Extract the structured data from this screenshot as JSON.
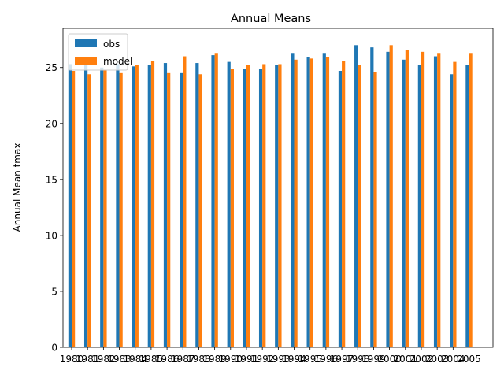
{
  "chart_data": {
    "type": "bar",
    "title": "Annual Means",
    "xlabel": "",
    "ylabel": "Annual Mean tmax",
    "ylim": [
      0,
      28.5
    ],
    "yticks": [
      0,
      5,
      10,
      15,
      20,
      25
    ],
    "legend_position": "top-left",
    "categories": [
      "1980",
      "1981",
      "1982",
      "1983",
      "1984",
      "1985",
      "1986",
      "1987",
      "1988",
      "1989",
      "1990",
      "1991",
      "1992",
      "1993",
      "1994",
      "1995",
      "1996",
      "1997",
      "1998",
      "1999",
      "2000",
      "2001",
      "2002",
      "2003",
      "2004",
      "2005"
    ],
    "series": [
      {
        "name": "obs",
        "color": "#1f77b4",
        "values": [
          25.3,
          25.4,
          25.0,
          25.3,
          25.1,
          25.2,
          25.4,
          24.5,
          25.4,
          26.1,
          25.5,
          24.9,
          24.9,
          25.2,
          26.3,
          25.9,
          26.3,
          24.7,
          27.0,
          26.8,
          26.4,
          25.7,
          25.2,
          26.0,
          24.4,
          25.2
        ]
      },
      {
        "name": "model",
        "color": "#ff7f0e",
        "values": [
          24.7,
          24.4,
          24.8,
          24.5,
          25.2,
          25.6,
          24.5,
          26.0,
          24.4,
          26.3,
          24.9,
          25.2,
          25.3,
          25.3,
          25.7,
          25.8,
          25.9,
          25.6,
          25.2,
          24.6,
          27.0,
          26.6,
          26.4,
          26.3,
          25.5,
          26.3
        ]
      }
    ]
  }
}
